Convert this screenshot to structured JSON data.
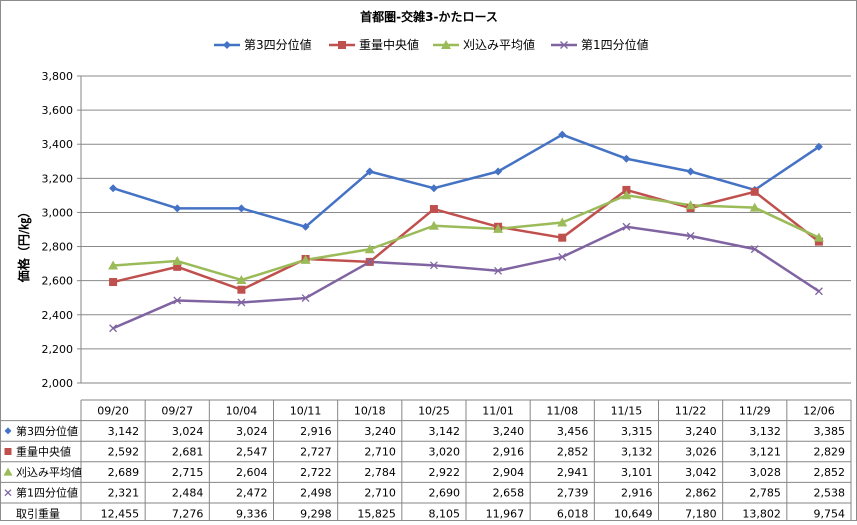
{
  "chart_data": {
    "type": "line",
    "title": "首都圏-交雑3-かたロース",
    "ylabel": "価格（円/㎏）",
    "ylim": [
      2000,
      3800
    ],
    "yticks": [
      2000,
      2200,
      2400,
      2600,
      2800,
      3000,
      3200,
      3400,
      3600,
      3800
    ],
    "ytick_labels": [
      "2,000",
      "2,200",
      "2,400",
      "2,600",
      "2,800",
      "3,000",
      "3,200",
      "3,400",
      "3,600",
      "3,800"
    ],
    "grid": true,
    "legend_position": "top",
    "categories": [
      "09/20",
      "09/27",
      "10/04",
      "10/11",
      "10/18",
      "10/25",
      "11/01",
      "11/08",
      "11/15",
      "11/22",
      "11/29",
      "12/06"
    ],
    "series": [
      {
        "name": "第3四分位値",
        "color": "#4472C4",
        "marker": "diamond",
        "values": [
          3142,
          3024,
          3024,
          2916,
          3240,
          3142,
          3240,
          3456,
          3315,
          3240,
          3132,
          3385
        ],
        "labels": [
          "3,142",
          "3,024",
          "3,024",
          "2,916",
          "3,240",
          "3,142",
          "3,240",
          "3,456",
          "3,315",
          "3,240",
          "3,132",
          "3,385"
        ]
      },
      {
        "name": "重量中央値",
        "color": "#C0504D",
        "marker": "square",
        "values": [
          2592,
          2681,
          2547,
          2727,
          2710,
          3020,
          2916,
          2852,
          3132,
          3026,
          3121,
          2829
        ],
        "labels": [
          "2,592",
          "2,681",
          "2,547",
          "2,727",
          "2,710",
          "3,020",
          "2,916",
          "2,852",
          "3,132",
          "3,026",
          "3,121",
          "2,829"
        ]
      },
      {
        "name": "刈込み平均値",
        "color": "#9BBB59",
        "marker": "triangle",
        "values": [
          2689,
          2715,
          2604,
          2722,
          2784,
          2922,
          2904,
          2941,
          3101,
          3042,
          3028,
          2852
        ],
        "labels": [
          "2,689",
          "2,715",
          "2,604",
          "2,722",
          "2,784",
          "2,922",
          "2,904",
          "2,941",
          "3,101",
          "3,042",
          "3,028",
          "2,852"
        ]
      },
      {
        "name": "第1四分位値",
        "color": "#8064A2",
        "marker": "x",
        "values": [
          2321,
          2484,
          2472,
          2498,
          2710,
          2690,
          2658,
          2739,
          2916,
          2862,
          2785,
          2538
        ],
        "labels": [
          "2,321",
          "2,484",
          "2,472",
          "2,498",
          "2,710",
          "2,690",
          "2,658",
          "2,739",
          "2,916",
          "2,862",
          "2,785",
          "2,538"
        ]
      }
    ],
    "table_extra_row": {
      "name": "取引重量",
      "values": [
        12455,
        7276,
        9336,
        9298,
        15825,
        8105,
        11967,
        6018,
        10649,
        7180,
        13802,
        9754
      ],
      "labels": [
        "12,455",
        "7,276",
        "9,336",
        "9,298",
        "15,825",
        "8,105",
        "11,967",
        "6,018",
        "10,649",
        "7,180",
        "13,802",
        "9,754"
      ]
    }
  }
}
